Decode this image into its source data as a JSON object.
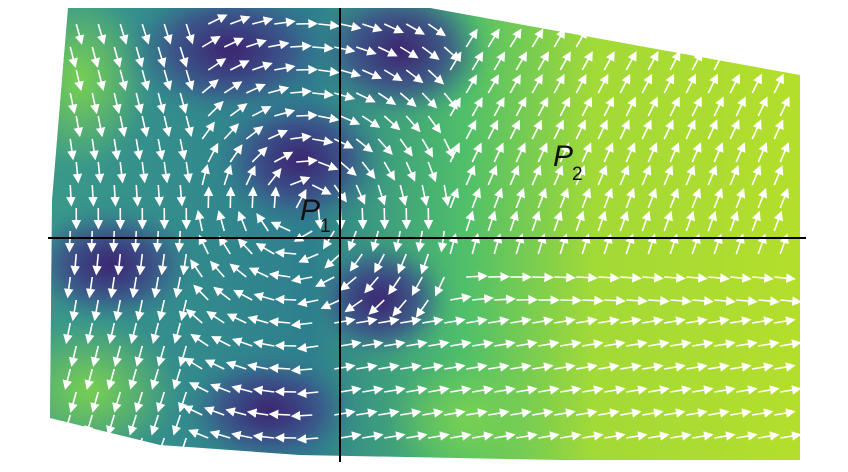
{
  "labels": [
    {
      "letter": "P",
      "subscript": "1"
    },
    {
      "letter": "P",
      "subscript": "2"
    }
  ]
}
